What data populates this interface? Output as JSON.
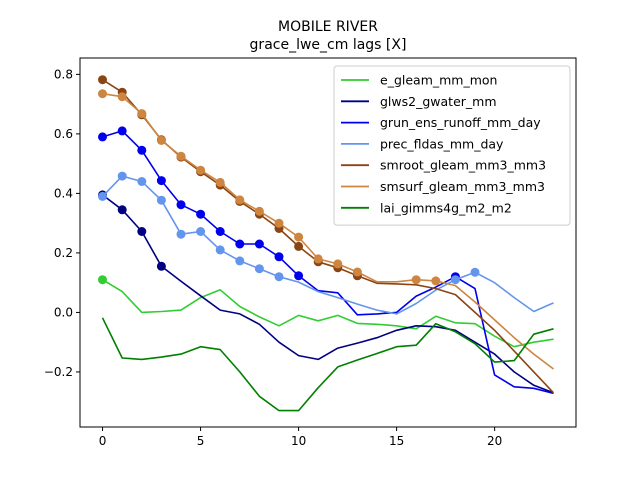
{
  "chart_data": {
    "type": "line",
    "title": "MOBILE RIVER",
    "subtitle": "grace_lwe_cm lags [X]",
    "xlabel": "",
    "ylabel": "",
    "xlim": [
      -1.15,
      24.15
    ],
    "ylim": [
      -0.385,
      0.855
    ],
    "xticks": [
      0,
      5,
      10,
      15,
      20
    ],
    "yticks": [
      -0.2,
      0.0,
      0.2,
      0.4,
      0.6,
      0.8
    ],
    "ytick_labels": [
      "−0.2",
      "0.0",
      "0.2",
      "0.4",
      "0.6",
      "0.8"
    ],
    "grid": false,
    "legend_position": "upper right",
    "x": [
      0,
      1,
      2,
      3,
      4,
      5,
      6,
      7,
      8,
      9,
      10,
      11,
      12,
      13,
      14,
      15,
      16,
      17,
      18,
      19,
      20,
      21,
      22,
      23
    ],
    "series": [
      {
        "name": "e_gleam_mm_mon",
        "color": "#32cd32",
        "values": [
          0.11,
          0.07,
          0.0,
          0.003,
          0.008,
          0.05,
          0.076,
          0.02,
          -0.015,
          -0.045,
          -0.01,
          -0.028,
          -0.01,
          -0.037,
          -0.04,
          -0.045,
          -0.055,
          -0.013,
          -0.035,
          -0.038,
          -0.08,
          -0.115,
          -0.1,
          -0.09
        ],
        "markers": [
          0
        ]
      },
      {
        "name": "glws2_gwater_mm",
        "color": "#000080",
        "values": [
          0.395,
          0.345,
          0.272,
          0.155,
          0.105,
          0.056,
          0.008,
          -0.005,
          -0.04,
          -0.1,
          -0.145,
          -0.158,
          -0.12,
          -0.103,
          -0.085,
          -0.06,
          -0.045,
          -0.048,
          -0.06,
          -0.1,
          -0.14,
          -0.2,
          -0.245,
          -0.27
        ],
        "markers": [
          0,
          1,
          2,
          3
        ]
      },
      {
        "name": "grun_ens_runoff_mm_day",
        "color": "#0000ee",
        "values": [
          0.59,
          0.61,
          0.545,
          0.443,
          0.362,
          0.33,
          0.272,
          0.23,
          0.23,
          0.187,
          0.123,
          0.073,
          0.066,
          -0.008,
          -0.005,
          0.0,
          0.055,
          0.085,
          0.12,
          0.08,
          -0.21,
          -0.25,
          -0.255,
          -0.272
        ],
        "markers": [
          0,
          1,
          2,
          3,
          4,
          5,
          6,
          7,
          8,
          9,
          10,
          18
        ]
      },
      {
        "name": "prec_fldas_mm_day",
        "color": "#6495ed",
        "values": [
          0.39,
          0.458,
          0.44,
          0.377,
          0.263,
          0.272,
          0.21,
          0.173,
          0.147,
          0.12,
          0.102,
          0.07,
          0.05,
          0.028,
          0.008,
          -0.005,
          0.03,
          0.075,
          0.11,
          0.135,
          0.1,
          0.05,
          0.003,
          0.032
        ],
        "markers": [
          0,
          1,
          2,
          3,
          4,
          5,
          6,
          7,
          8,
          9,
          18,
          19
        ]
      },
      {
        "name": "smroot_gleam_mm3_mm3",
        "color": "#8b4513",
        "values": [
          0.782,
          0.74,
          0.664,
          0.58,
          0.522,
          0.473,
          0.428,
          0.373,
          0.33,
          0.282,
          0.222,
          0.17,
          0.15,
          0.123,
          0.098,
          0.096,
          0.093,
          0.08,
          0.06,
          0.0,
          -0.06,
          -0.13,
          -0.2,
          -0.27
        ],
        "markers": [
          0,
          1,
          2,
          3,
          4,
          5,
          6,
          7,
          8,
          9,
          10,
          11,
          12,
          13
        ]
      },
      {
        "name": "smsurf_gleam_mm3_mm3",
        "color": "#cd853f",
        "values": [
          0.735,
          0.725,
          0.668,
          0.578,
          0.525,
          0.478,
          0.437,
          0.378,
          0.34,
          0.3,
          0.253,
          0.18,
          0.163,
          0.136,
          0.103,
          0.103,
          0.11,
          0.106,
          0.09,
          0.035,
          -0.025,
          -0.085,
          -0.14,
          -0.19
        ],
        "markers": [
          0,
          1,
          2,
          3,
          4,
          5,
          6,
          7,
          8,
          9,
          10,
          11,
          12,
          13,
          16,
          17
        ]
      },
      {
        "name": "lai_gimms4g_m2_m2",
        "color": "#008000",
        "values": [
          -0.018,
          -0.153,
          -0.158,
          -0.15,
          -0.14,
          -0.115,
          -0.125,
          -0.2,
          -0.282,
          -0.33,
          -0.33,
          -0.253,
          -0.183,
          -0.16,
          -0.138,
          -0.115,
          -0.11,
          -0.038,
          -0.065,
          -0.105,
          -0.167,
          -0.162,
          -0.073,
          -0.055
        ],
        "markers": []
      }
    ]
  }
}
